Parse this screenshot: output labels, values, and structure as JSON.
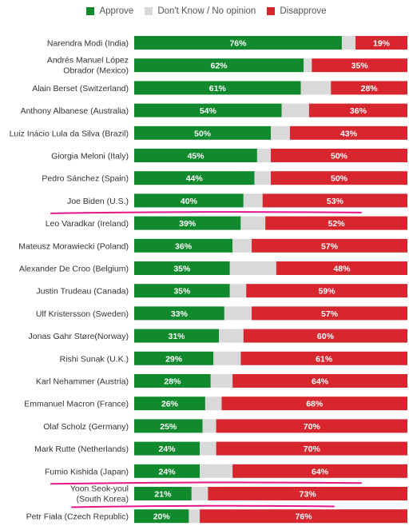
{
  "colors": {
    "approve": "#118a2e",
    "dont_know": "#d9d9d9",
    "disapprove": "#d7262d",
    "highlight": "#e4148c"
  },
  "legend": {
    "approve": "Approve",
    "dont_know": "Don't Know / No opinion",
    "disapprove": "Disapprove"
  },
  "chart_data": {
    "type": "bar",
    "stacked": true,
    "orientation": "horizontal",
    "xlim": [
      0,
      100
    ],
    "grid": false,
    "legend_position": "top",
    "categories": [
      [
        "Narendra Modi (India)"
      ],
      [
        "Andrés Manuel López",
        "Obrador (Mexico)"
      ],
      [
        "Alain Berset (Switzerland)"
      ],
      [
        "Anthony Albanese (Australia)"
      ],
      [
        "Luiz Inácio Lula da Silva (Brazil)"
      ],
      [
        "Giorgia Meloni (Italy)"
      ],
      [
        "Pedro Sánchez (Spain)"
      ],
      [
        "Joe Biden (U.S.)"
      ],
      [
        "Leo Varadkar (Ireland)"
      ],
      [
        "Mateusz Morawiecki (Poland)"
      ],
      [
        "Alexander De Croo (Belgium)"
      ],
      [
        "Justin Trudeau (Canada)"
      ],
      [
        "Ulf Kristersson (Sweden)"
      ],
      [
        "Jonas Gahr Støre(Norway)"
      ],
      [
        "Rishi Sunak (U.K.)"
      ],
      [
        "Karl Nehammer (Austria)"
      ],
      [
        "Emmanuel Macron (France)"
      ],
      [
        "Olaf Scholz (Germany)"
      ],
      [
        "Mark Rutte (Netherlands)"
      ],
      [
        "Fumio Kishida (Japan)"
      ],
      [
        "Yoon Seok-youl",
        "(South Korea)"
      ],
      [
        "Petr Fiala (Czech Republic)"
      ]
    ],
    "series": [
      {
        "name": "Approve",
        "values": [
          76,
          62,
          61,
          54,
          50,
          45,
          44,
          40,
          39,
          36,
          35,
          35,
          33,
          31,
          29,
          28,
          26,
          25,
          24,
          24,
          21,
          20
        ]
      },
      {
        "name": "Don't Know / No opinion",
        "values": [
          5,
          3,
          11,
          10,
          7,
          5,
          6,
          7,
          9,
          7,
          17,
          6,
          10,
          9,
          10,
          8,
          6,
          5,
          6,
          12,
          6,
          4
        ]
      },
      {
        "name": "Disapprove",
        "values": [
          19,
          35,
          28,
          36,
          43,
          50,
          50,
          53,
          52,
          57,
          48,
          59,
          57,
          60,
          61,
          64,
          68,
          70,
          70,
          64,
          73,
          76
        ]
      }
    ],
    "value_labels": {
      "approve": [
        "76%",
        "62%",
        "61%",
        "54%",
        "50%",
        "45%",
        "44%",
        "40%",
        "39%",
        "36%",
        "35%",
        "35%",
        "33%",
        "31%",
        "29%",
        "28%",
        "26%",
        "25%",
        "24%",
        "24%",
        "21%",
        "20%"
      ],
      "disapprove": [
        "19%",
        "35%",
        "28%",
        "36%",
        "43%",
        "50%",
        "50%",
        "53%",
        "52%",
        "57%",
        "48%",
        "59%",
        "57%",
        "60%",
        "61%",
        "64%",
        "68%",
        "70%",
        "70%",
        "64%",
        "73%",
        "76%"
      ]
    },
    "highlighted": [
      "Joe Biden (U.S.)",
      "Fumio Kishida (Japan)",
      "Yoon Seok-youl (South Korea)"
    ]
  }
}
